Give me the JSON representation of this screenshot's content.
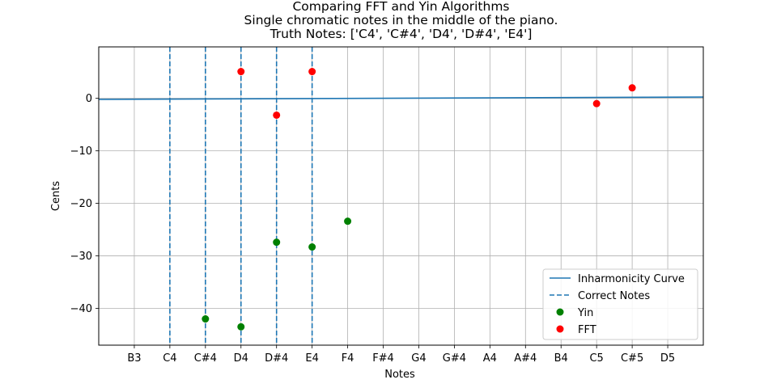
{
  "chart_data": {
    "type": "scatter",
    "title": [
      "Comparing FFT and Yin Algorithms",
      "Single chromatic notes in the middle of the piano.",
      "Truth Notes: ['C4', 'C#4', 'D4', 'D#4', 'E4']"
    ],
    "xlabel": "Notes",
    "ylabel": "Cents",
    "categories": [
      "B3",
      "C4",
      "C#4",
      "D4",
      "D#4",
      "E4",
      "F4",
      "F#4",
      "G4",
      "G#4",
      "A4",
      "A#4",
      "B4",
      "C5",
      "C#5",
      "D5"
    ],
    "xlim": [
      -1,
      16
    ],
    "ylim": [
      -47,
      9.8
    ],
    "yticks": [
      0,
      -10,
      -20,
      -30,
      -40
    ],
    "grid": true,
    "legend_position": "lower-right",
    "inharmonicity_curve": {
      "name": "Inharmonicity Curve",
      "color": "#1f77b4",
      "x": [
        -1,
        16
      ],
      "y": [
        -0.2,
        0.25
      ]
    },
    "correct_notes": {
      "name": "Correct Notes",
      "color": "#1f77b4",
      "x": [
        1,
        2,
        3,
        4,
        5
      ]
    },
    "series": [
      {
        "name": "Yin",
        "color": "#008000",
        "points": [
          {
            "x": 2,
            "y": -42
          },
          {
            "x": 3,
            "y": -43.5
          },
          {
            "x": 4,
            "y": -27.4
          },
          {
            "x": 5,
            "y": -28.3
          },
          {
            "x": 6,
            "y": -23.4
          }
        ]
      },
      {
        "name": "FFT",
        "color": "#ff0000",
        "points": [
          {
            "x": 3,
            "y": 5.1
          },
          {
            "x": 4,
            "y": -3.2
          },
          {
            "x": 5,
            "y": 5.1
          },
          {
            "x": 13,
            "y": -1
          },
          {
            "x": 14,
            "y": 2
          }
        ]
      }
    ]
  }
}
